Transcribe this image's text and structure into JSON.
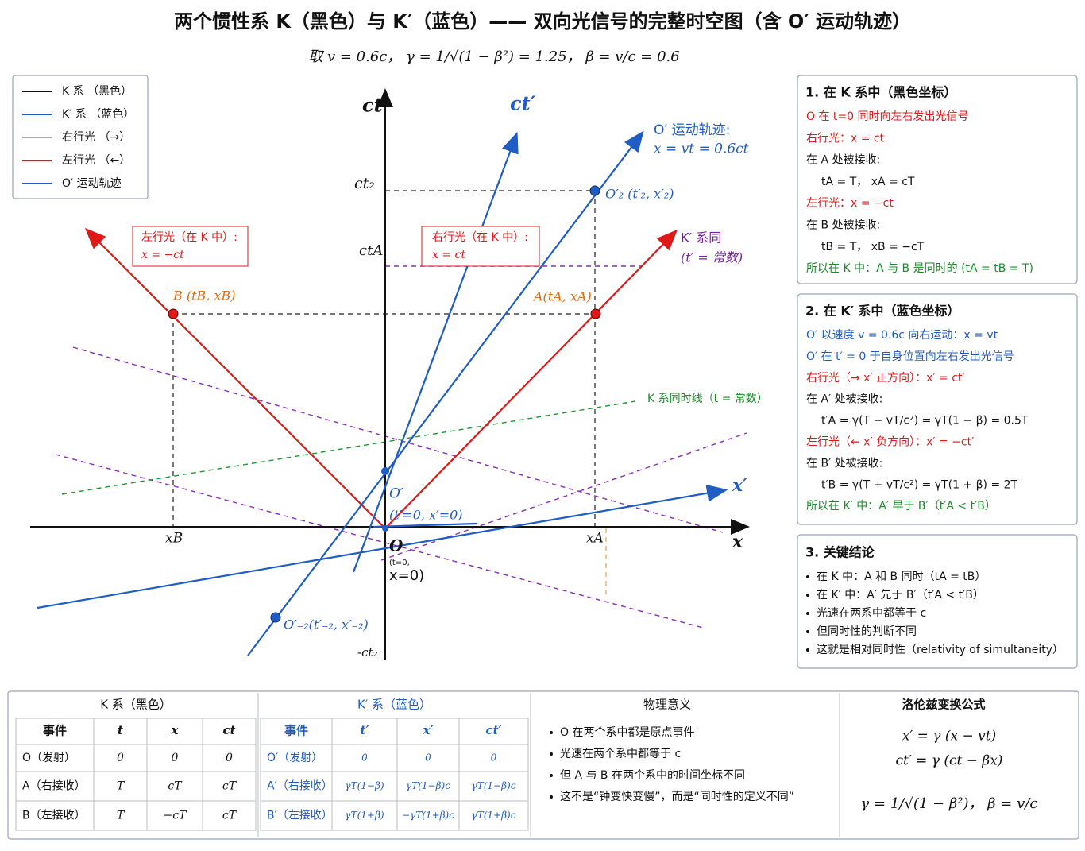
{
  "title": "两个惯性系 K（黑色）与 K′（蓝色）—— 双向光信号的完整时空图（含 O′ 运动轨迹）",
  "subtitle": "取 v = 0.6c，  γ = 1/√(1 − β²) = 1.25，  β = v/c = 0.6",
  "legend": [
    {
      "label": "K 系 （黑色）",
      "color": "#111111"
    },
    {
      "label": "K′ 系 （蓝色）",
      "color": "#1f5cc4"
    },
    {
      "label": "右行光 （→）",
      "color": "#aaaaaa"
    },
    {
      "label": "左行光 （←）",
      "color": "#e01818"
    },
    {
      "label": "O′ 运动轨迹",
      "color": "#1f5cc4"
    }
  ],
  "diagram": {
    "axis_ct": "ct",
    "axis_ct_prime": "ct′",
    "axis_x": "x",
    "axis_x_prime": "x′",
    "tick_ct2": "ct₂",
    "tick_ctA": "ctA",
    "tick_neg_ct2": "-ct₂",
    "tick_xB": "xB",
    "tick_xA": "xA",
    "origin": "O",
    "origin_coords_1": "(t=0,",
    "origin_coords_2": "x=0)",
    "o_prime": "O′",
    "o_prime_coords": "(t′=0, x′=0)",
    "event_B": "B (tB, xB)",
    "event_A": "A(tA, xA)",
    "event_o2": "O′₂ (t′₂, x′₂)",
    "event_o_neg2": "O′₋₂(t′₋₂, x′₋₂)",
    "traj_title": "O′ 运动轨迹:",
    "traj_eq": "x = vt = 0.6ct",
    "k_prime_sim_1": "K′ 系同",
    "k_prime_sim_2": "(t′ = 常数)",
    "k_sim": "K 系同时线（t = 常数）",
    "box_left_1": "左行光（在 K 中）:",
    "box_left_2": "x = −ct",
    "box_right_1": "右行光（在 K 中）:",
    "box_right_2": "x = ct"
  },
  "panels": [
    {
      "title": "1.  在 K 系中（黑色坐标）",
      "lines": [
        {
          "text": "O 在 t=0 同时向左右发出光信号",
          "color": "#e01818"
        },
        {
          "text": "右行光：x = ct",
          "color": "#e01818"
        },
        {
          "text": "在 A 处被接收:",
          "color": "#111111"
        },
        {
          "text": "tA = T，  xA = cT",
          "color": "#111111"
        },
        {
          "text": "左行光：x = −ct",
          "color": "#e01818"
        },
        {
          "text": "在 B 处被接收:",
          "color": "#111111"
        },
        {
          "text": "tB = T，  xB = −cT",
          "color": "#111111"
        },
        {
          "text": "所以在 K 中：A 与 B 是同时的 (tA = tB = T)",
          "color": "#1a8a2a"
        }
      ]
    },
    {
      "title": "2.  在 K′ 系中（蓝色坐标）",
      "lines": [
        {
          "text": "O′ 以速度 v = 0.6c 向右运动：x = vt",
          "color": "#1f5cc4"
        },
        {
          "text": "O′ 在 t′ = 0 于自身位置向左右发出光信号",
          "color": "#1f5cc4"
        },
        {
          "text": "右行光（→ x′ 正方向）：x′ = ct′",
          "color": "#e01818"
        },
        {
          "text": "在 A′ 处被接收:",
          "color": "#111111"
        },
        {
          "text": "t′A = γ(T − vT/c²) = γT(1 − β) = 0.5T",
          "color": "#111111"
        },
        {
          "text": "左行光（← x′ 负方向）：x′ = −ct′",
          "color": "#e01818"
        },
        {
          "text": "在 B′ 处被接收:",
          "color": "#111111"
        },
        {
          "text": "t′B = γ(T + vT/c²) = γT(1 + β) = 2T",
          "color": "#111111"
        },
        {
          "text": "所以在 K′ 中：A′ 早于 B′（t′A < t′B）",
          "color": "#1a8a2a"
        }
      ]
    },
    {
      "title": "3.  关键结论",
      "lines": [
        {
          "text": "在 K 中：A 和 B 同时（tA = tB）",
          "color": "#111111"
        },
        {
          "text": "在 K′ 中：A′ 先于 B′（t′A < t′B）",
          "color": "#111111"
        },
        {
          "text": "光速在两系中都等于 c",
          "color": "#111111"
        },
        {
          "text": "但同时性的判断不同",
          "color": "#111111"
        },
        {
          "text": "这就是相对同时性（relativity of simultaneity）",
          "color": "#111111"
        }
      ]
    }
  ],
  "table": {
    "k": {
      "title": "K 系（黑色）",
      "headers": [
        "事件",
        "t",
        "x",
        "ct"
      ],
      "rows": [
        [
          "O（发射）",
          "0",
          "0",
          "0"
        ],
        [
          "A（右接收）",
          "T",
          "cT",
          "cT"
        ],
        [
          "B（左接收）",
          "T",
          "−cT",
          "cT"
        ]
      ]
    },
    "kprime": {
      "title": "K′ 系（蓝色）",
      "headers": [
        "事件",
        "t′",
        "x′",
        "ct′"
      ],
      "rows": [
        [
          "O′（发射）",
          "0",
          "0",
          "0"
        ],
        [
          "A′（右接收）",
          "γT(1−β)",
          "γT(1−β)c",
          "γT(1−β)c"
        ],
        [
          "B′（左接收）",
          "γT(1+β)",
          "−γT(1+β)c",
          "γT(1+β)c"
        ]
      ]
    },
    "physics": {
      "title": "物理意义",
      "items": [
        "O 在两个系中都是原点事件",
        "光速在两个系中都等于 c",
        "但 A 与 B 在两个系中的时间坐标不同",
        "这不是“钟变快变慢”，而是“同时性的定义不同”"
      ]
    },
    "lorentz": {
      "title": "洛伦兹变换公式",
      "lines": [
        "x′ = γ (x − vt)",
        "ct′ = γ (ct − βx)",
        "γ = 1/√(1 − β²)，   β = v/c"
      ]
    }
  }
}
